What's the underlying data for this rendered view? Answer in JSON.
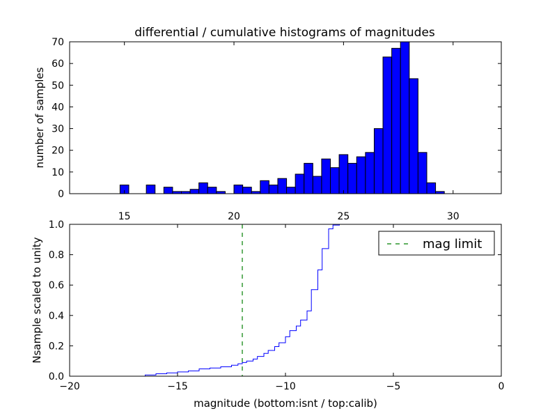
{
  "chart_data": [
    {
      "type": "bar",
      "title": "differential / cumulative histograms of magnitudes",
      "ylabel": "number of samples",
      "xlabel": "",
      "xlim": [
        12.5,
        32.2
      ],
      "ylim": [
        0,
        70
      ],
      "xticks": [
        15,
        20,
        25,
        30
      ],
      "yticks": [
        0,
        10,
        20,
        30,
        40,
        50,
        60,
        70
      ],
      "x_axis_position": "top",
      "bar_color": "#0000ff",
      "bins": [
        {
          "x0": 14.8,
          "x1": 15.2,
          "value": 4
        },
        {
          "x0": 16.0,
          "x1": 16.4,
          "value": 4
        },
        {
          "x0": 16.8,
          "x1": 17.2,
          "value": 3
        },
        {
          "x0": 17.2,
          "x1": 17.6,
          "value": 1
        },
        {
          "x0": 17.6,
          "x1": 18.0,
          "value": 1
        },
        {
          "x0": 18.0,
          "x1": 18.4,
          "value": 2
        },
        {
          "x0": 18.4,
          "x1": 18.8,
          "value": 5
        },
        {
          "x0": 18.8,
          "x1": 19.2,
          "value": 3
        },
        {
          "x0": 19.2,
          "x1": 19.6,
          "value": 1
        },
        {
          "x0": 20.0,
          "x1": 20.4,
          "value": 4
        },
        {
          "x0": 20.4,
          "x1": 20.8,
          "value": 3
        },
        {
          "x0": 20.8,
          "x1": 21.2,
          "value": 1
        },
        {
          "x0": 21.2,
          "x1": 21.6,
          "value": 6
        },
        {
          "x0": 21.6,
          "x1": 22.0,
          "value": 4
        },
        {
          "x0": 22.0,
          "x1": 22.4,
          "value": 7
        },
        {
          "x0": 22.4,
          "x1": 22.8,
          "value": 3
        },
        {
          "x0": 22.8,
          "x1": 23.2,
          "value": 9
        },
        {
          "x0": 23.2,
          "x1": 23.6,
          "value": 14
        },
        {
          "x0": 23.6,
          "x1": 24.0,
          "value": 8
        },
        {
          "x0": 24.0,
          "x1": 24.4,
          "value": 16
        },
        {
          "x0": 24.4,
          "x1": 24.8,
          "value": 12
        },
        {
          "x0": 24.8,
          "x1": 25.2,
          "value": 18
        },
        {
          "x0": 25.2,
          "x1": 25.6,
          "value": 14
        },
        {
          "x0": 25.6,
          "x1": 26.0,
          "value": 17
        },
        {
          "x0": 26.0,
          "x1": 26.4,
          "value": 19
        },
        {
          "x0": 26.4,
          "x1": 26.8,
          "value": 30
        },
        {
          "x0": 26.8,
          "x1": 27.2,
          "value": 63
        },
        {
          "x0": 27.2,
          "x1": 27.6,
          "value": 67
        },
        {
          "x0": 27.6,
          "x1": 28.0,
          "value": 70
        },
        {
          "x0": 28.0,
          "x1": 28.4,
          "value": 53
        },
        {
          "x0": 28.4,
          "x1": 28.8,
          "value": 19
        },
        {
          "x0": 28.8,
          "x1": 29.2,
          "value": 5
        },
        {
          "x0": 29.2,
          "x1": 29.6,
          "value": 1
        }
      ]
    },
    {
      "type": "line",
      "title": "",
      "xlabel": "magnitude (bottom:isnt / top:calib)",
      "ylabel": "Nsample scaled to unity",
      "xlim": [
        -20,
        0
      ],
      "ylim": [
        0,
        1.0
      ],
      "xticks": [
        -20,
        -15,
        -10,
        -5,
        0
      ],
      "yticks": [
        0.0,
        0.2,
        0.4,
        0.6,
        0.8,
        1.0
      ],
      "ytick_labels": [
        "0.0",
        "0.2",
        "0.4",
        "0.6",
        "0.8",
        "1.0"
      ],
      "line_color": "#0000ff",
      "step": true,
      "series": [
        {
          "name": "",
          "x": [
            -20,
            -16.5,
            -16.0,
            -15.5,
            -15.0,
            -14.5,
            -14.0,
            -13.5,
            -13.0,
            -12.5,
            -12.2,
            -12.0,
            -11.8,
            -11.5,
            -11.3,
            -11.0,
            -10.8,
            -10.5,
            -10.3,
            -10.0,
            -9.8,
            -9.5,
            -9.3,
            -9.0,
            -8.8,
            -8.5,
            -8.3,
            -8.0,
            -7.8,
            -7.5
          ],
          "y": [
            0.0,
            0.008,
            0.016,
            0.022,
            0.028,
            0.035,
            0.048,
            0.054,
            0.062,
            0.072,
            0.082,
            0.09,
            0.1,
            0.113,
            0.13,
            0.15,
            0.17,
            0.195,
            0.22,
            0.26,
            0.3,
            0.33,
            0.37,
            0.43,
            0.57,
            0.7,
            0.84,
            0.97,
            0.995,
            1.0
          ]
        }
      ],
      "reference_lines": [
        {
          "name": "mag limit",
          "x": -12,
          "color": "#008000",
          "style": "dashed"
        }
      ],
      "legend": {
        "position": "top-right",
        "entries": [
          "mag limit"
        ]
      }
    }
  ]
}
